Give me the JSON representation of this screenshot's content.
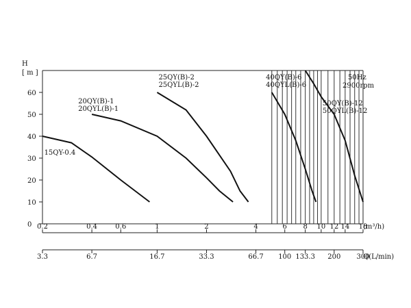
{
  "chart_data": {
    "type": "line",
    "title": "",
    "xscale": "log",
    "ylabel": "H",
    "yunit": "[ m ]",
    "ylim": [
      0,
      70
    ],
    "yticks": [
      0,
      10,
      20,
      30,
      40,
      50,
      60
    ],
    "xlim": [
      0.2,
      18
    ],
    "x1_unit_label": "(m³/h)",
    "x1_ticks": [
      {
        "value": 0.2,
        "label": "0.2"
      },
      {
        "value": 0.4,
        "label": "0.4"
      },
      {
        "value": 0.6,
        "label": "0.6"
      },
      {
        "value": 1,
        "label": "1"
      },
      {
        "value": 2,
        "label": "2"
      },
      {
        "value": 4,
        "label": "4"
      },
      {
        "value": 6,
        "label": "6"
      },
      {
        "value": 8,
        "label": "8"
      },
      {
        "value": 10,
        "label": "10"
      },
      {
        "value": 12,
        "label": "12"
      },
      {
        "value": 14,
        "label": "14"
      },
      {
        "value": 18,
        "label": "18"
      }
    ],
    "x2_unit_label": "Q(L/min)",
    "x2_ticks": [
      {
        "value": 0.2,
        "label": "3.3"
      },
      {
        "value": 0.4,
        "label": "6.7"
      },
      {
        "value": 1,
        "label": "16.7"
      },
      {
        "value": 2,
        "label": "33.3"
      },
      {
        "value": 4,
        "label": "66.7"
      },
      {
        "value": 6,
        "label": "100"
      },
      {
        "value": 8,
        "label": "133.3"
      },
      {
        "value": 12,
        "label": "200"
      },
      {
        "value": 18,
        "label": "300"
      }
    ],
    "speed_note": [
      "50Hz",
      "2900rpm"
    ],
    "gridlines_x": [
      5,
      5.4,
      5.8,
      6.2,
      6.6,
      7,
      7.5,
      8,
      8.5,
      9,
      9.5,
      10,
      11,
      12,
      13,
      14,
      15,
      16,
      17
    ],
    "grid": false,
    "series": [
      {
        "name": "15QY-0.4",
        "points": [
          [
            0.2,
            40
          ],
          [
            0.3,
            37
          ],
          [
            0.4,
            30.5
          ],
          [
            0.6,
            20
          ],
          [
            0.9,
            10
          ]
        ]
      },
      {
        "name": "20QY(B)-1 / 20QYL(B)-1",
        "points": [
          [
            0.4,
            50
          ],
          [
            0.6,
            47
          ],
          [
            1,
            40
          ],
          [
            1.5,
            30
          ],
          [
            2,
            21
          ],
          [
            2.4,
            15
          ],
          [
            2.9,
            10
          ]
        ]
      },
      {
        "name": "25QY(B)-2 / 25QYL(B)-2",
        "points": [
          [
            1,
            60
          ],
          [
            1.5,
            52
          ],
          [
            2,
            40
          ],
          [
            2.8,
            24
          ],
          [
            3.2,
            15
          ],
          [
            3.6,
            10
          ]
        ]
      },
      {
        "name": "40QY(B)-6 / 40QYL(B)-6",
        "points": [
          [
            5,
            60
          ],
          [
            6,
            50
          ],
          [
            7,
            38
          ],
          [
            8,
            25
          ],
          [
            8.8,
            15
          ],
          [
            9.3,
            10
          ]
        ]
      },
      {
        "name": "50QY(B)-12 / 50QYL(B)-12",
        "points": [
          [
            8,
            70
          ],
          [
            9,
            64
          ],
          [
            10,
            58
          ],
          [
            12,
            50
          ],
          [
            14,
            38
          ],
          [
            16,
            22
          ],
          [
            18,
            10
          ]
        ]
      }
    ],
    "labels": [
      {
        "lines": [
          "15QY-0.4"
        ],
        "x": 0.205,
        "y": 31.5
      },
      {
        "lines": [
          "20QY(B)-1",
          "20QYL(B)-1"
        ],
        "x": 0.33,
        "y": 55
      },
      {
        "lines": [
          "25QY(B)-2",
          "25QYL(B)-2"
        ],
        "x": 1.02,
        "y": 66
      },
      {
        "lines": [
          "40QY(B)-6",
          "40QYL(B)-6"
        ],
        "x": 4.6,
        "y": 66
      },
      {
        "lines": [
          "50QY(B)-12",
          "50QYL(B)-12"
        ],
        "x": 10.2,
        "y": 54
      }
    ]
  }
}
